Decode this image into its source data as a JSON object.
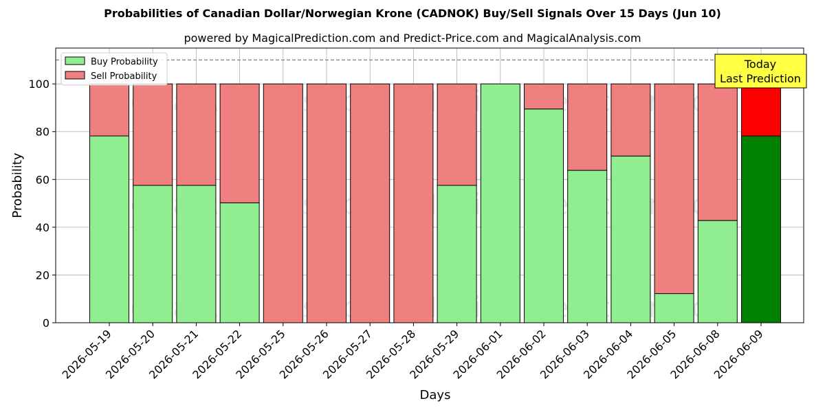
{
  "chart_data": {
    "type": "bar",
    "stacked": true,
    "title": "Probabilities of Canadian Dollar/Norwegian Krone (CADNOK) Buy/Sell Signals Over 15 Days (Jun 10)",
    "subtitle": "powered by MagicalPrediction.com and Predict-Price.com and MagicalAnalysis.com",
    "xlabel": "Days",
    "ylabel": "Probability",
    "ylim": [
      0,
      115
    ],
    "yticks": [
      0,
      20,
      40,
      60,
      80,
      100
    ],
    "reference_line": 110,
    "grid": true,
    "legend_position": "top-left",
    "categories": [
      "2026-05-19",
      "2026-05-20",
      "2026-05-21",
      "2026-05-22",
      "2026-05-25",
      "2026-05-26",
      "2026-05-27",
      "2026-05-28",
      "2026-05-29",
      "2026-06-01",
      "2026-06-02",
      "2026-06-03",
      "2026-06-04",
      "2026-06-05",
      "2026-06-08",
      "2026-06-09"
    ],
    "series": [
      {
        "name": "Buy Probability",
        "color": "#90ee90",
        "values": [
          78.2,
          57.5,
          57.5,
          50.2,
          0,
          0,
          0,
          0,
          57.5,
          100,
          89.5,
          63.8,
          69.8,
          12.2,
          42.8,
          78.2
        ]
      },
      {
        "name": "Sell Probability",
        "color": "#f08080",
        "values": [
          21.8,
          42.5,
          42.5,
          49.8,
          100,
          100,
          100,
          100,
          42.5,
          0,
          10.5,
          36.2,
          30.2,
          87.8,
          57.2,
          21.8
        ]
      }
    ],
    "highlight": {
      "index": 15,
      "buy_color": "#008000",
      "sell_color": "#ff0000"
    },
    "annotation": {
      "lines": [
        "Today",
        "Last Prediction"
      ],
      "bg": "#ffff44"
    },
    "watermarks": [
      "MagicalAnalysis.com",
      "MagicalPrediction.com"
    ]
  }
}
